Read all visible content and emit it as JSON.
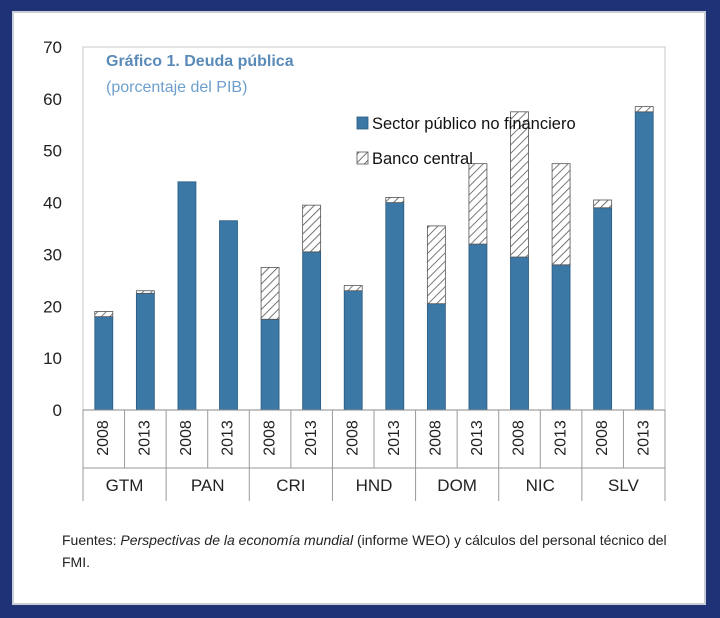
{
  "chart_data": {
    "type": "bar",
    "stacked": true,
    "title": "Gráfico 1. Deuda pública",
    "subtitle": "(porcentaje del PIB)",
    "xlabel": "",
    "ylabel": "",
    "ylim": [
      0,
      70
    ],
    "yticks": [
      0,
      10,
      20,
      30,
      40,
      50,
      60,
      70
    ],
    "groups": [
      "GTM",
      "PAN",
      "CRI",
      "HND",
      "DOM",
      "NIC",
      "SLV"
    ],
    "categories": [
      "2008",
      "2013",
      "2008",
      "2013",
      "2008",
      "2013",
      "2008",
      "2013",
      "2008",
      "2013",
      "2008",
      "2013",
      "2008",
      "2013"
    ],
    "series": [
      {
        "name": "Sector público no financiero",
        "color": "#3b78a6",
        "values": [
          18,
          22.5,
          44,
          36.5,
          17.5,
          30.5,
          23,
          40,
          20.5,
          32,
          29.5,
          28,
          39,
          57.5
        ]
      },
      {
        "name": "Banco central",
        "color": "#ffffff",
        "pattern": "hatch",
        "values": [
          1,
          0.5,
          0,
          0,
          10,
          9,
          1,
          1,
          15,
          15.5,
          28,
          19.5,
          1.5,
          1
        ]
      }
    ],
    "legend_position": "top-right"
  },
  "source": {
    "prefix": "Fuentes: ",
    "italic": "Perspectivas de la economía mundial",
    "suffix": " (informe WEO) y cálculos del personal técnico del FMI."
  }
}
